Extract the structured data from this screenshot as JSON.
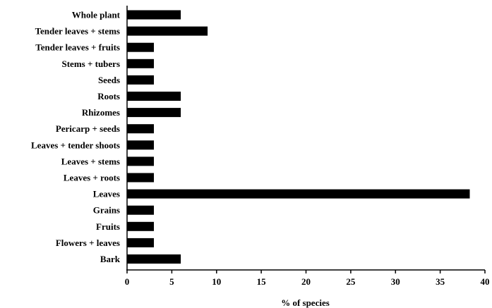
{
  "chart_data": {
    "type": "bar",
    "orientation": "horizontal",
    "categories": [
      "Whole plant",
      "Tender leaves + stems",
      "Tender leaves + fruits",
      "Stems + tubers",
      "Seeds",
      "Roots",
      "Rhizomes",
      "Pericarp + seeds",
      "Leaves + tender shoots",
      "Leaves + stems",
      "Leaves + roots",
      "Leaves",
      "Grains",
      "Fruits",
      "Flowers + leaves",
      "Bark"
    ],
    "values": [
      6,
      9,
      3,
      3,
      3,
      6,
      6,
      3,
      3,
      3,
      3,
      38.3,
      3,
      3,
      3,
      6
    ],
    "xlabel": "% of species",
    "ylabel": "",
    "xlim": [
      0,
      40
    ],
    "xticks": [
      "0",
      "5",
      "10",
      "15",
      "20",
      "25",
      "30",
      "35",
      "40"
    ],
    "bar_color": "#000000",
    "grid": false
  }
}
